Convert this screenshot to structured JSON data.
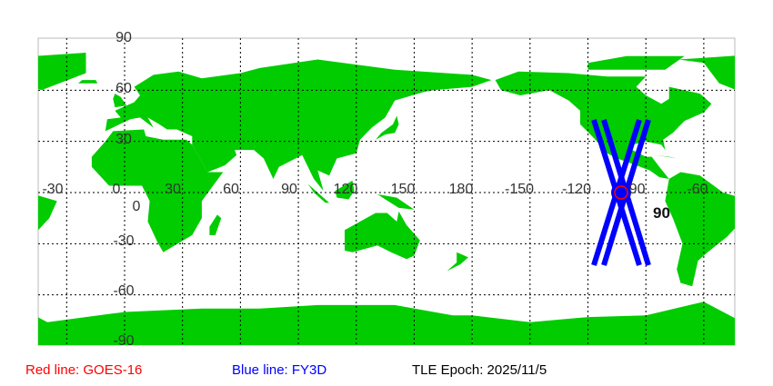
{
  "map": {
    "lat_labels": [
      "90",
      "60",
      "30",
      "0",
      "-30",
      "-60",
      "-90"
    ],
    "lon_labels": [
      "-30",
      "0",
      "30",
      "60",
      "90",
      "120",
      "150",
      "180",
      "-150",
      "-120",
      "-90",
      "-60"
    ],
    "colors": {
      "land": "#00cc00",
      "ocean": "#ffffff",
      "grid": "#000000",
      "track_goes": "#ff0000",
      "track_fy3d": "#0000ff"
    },
    "satellite_marker_label": "90"
  },
  "legend": {
    "red": {
      "text": "Red line: GOES-16",
      "color": "#ff0000"
    },
    "blue": {
      "text": "Blue line: FY3D",
      "color": "#0000ff"
    },
    "epoch": {
      "text": "TLE Epoch: 2025/11/5",
      "color": "#000000"
    }
  }
}
